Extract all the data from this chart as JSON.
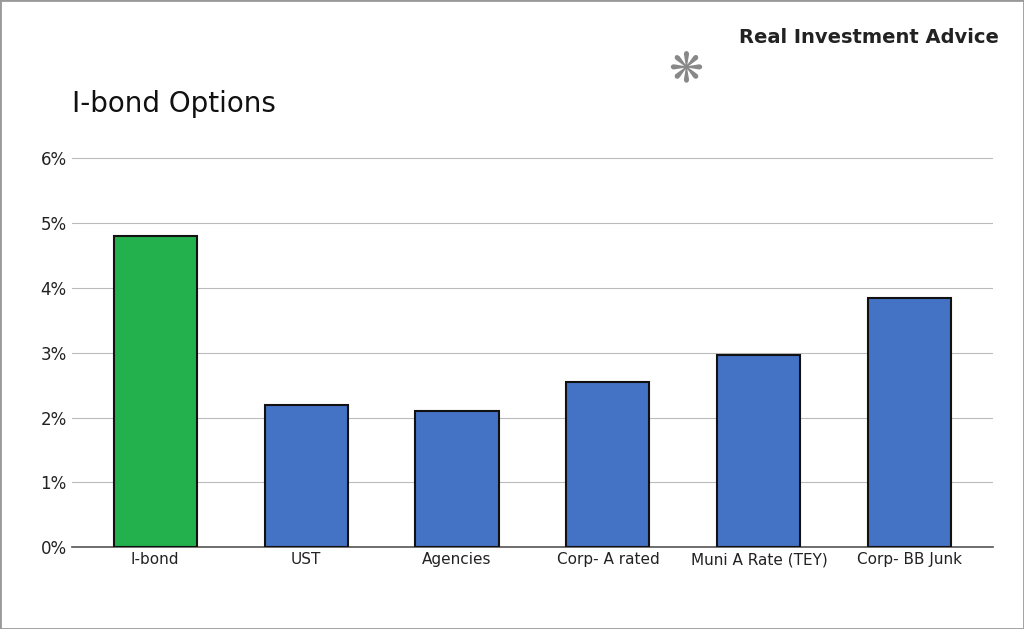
{
  "title": "I-bond Options",
  "categories": [
    "I-bond",
    "UST",
    "Agencies",
    "Corp- A rated",
    "Muni A Rate (TEY)",
    "Corp- BB Junk"
  ],
  "values": [
    0.048,
    0.022,
    0.021,
    0.0255,
    0.0297,
    0.0385
  ],
  "bar_colors": [
    "#22b14c",
    "#4472c4",
    "#4472c4",
    "#4472c4",
    "#4472c4",
    "#4472c4"
  ],
  "bar_edge_color": "#111111",
  "ylim": [
    0,
    0.065
  ],
  "yticks": [
    0.0,
    0.01,
    0.02,
    0.03,
    0.04,
    0.05,
    0.06
  ],
  "ytick_labels": [
    "0%",
    "1%",
    "2%",
    "3%",
    "4%",
    "5%",
    "6%"
  ],
  "title_fontsize": 20,
  "tick_fontsize": 12,
  "xtick_fontsize": 11,
  "background_color": "#ffffff",
  "grid_color": "#bbbbbb",
  "watermark_text": "Real Investment Advice",
  "watermark_fontsize": 14,
  "outer_border_color": "#555555",
  "bar_width": 0.55
}
